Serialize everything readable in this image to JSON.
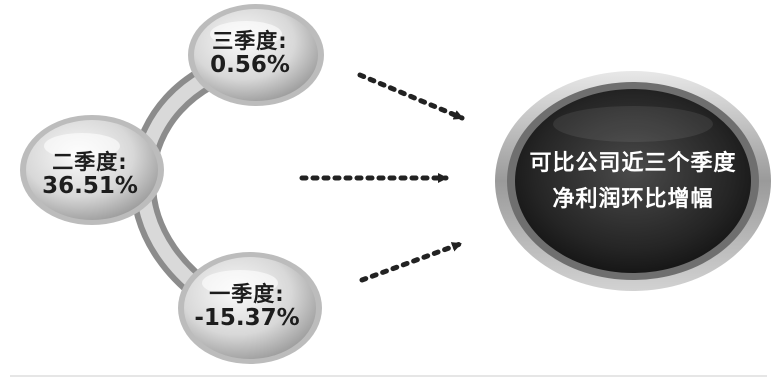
{
  "nodes": [
    {
      "id": "q3",
      "quarter": "三季度:",
      "value": "0.56%"
    },
    {
      "id": "q2",
      "quarter": "二季度:",
      "value": "36.51%"
    },
    {
      "id": "q1",
      "quarter": "一季度:",
      "value": "-15.37%"
    }
  ],
  "target": {
    "line1": "可比公司近三个季度",
    "line2": "净利润环比增幅"
  },
  "colors": {
    "bubble_light": "#f4f4f4",
    "bubble_dark": "#8a8a8a",
    "ring": "#9a9a9a",
    "target_core": "#2a2a2a",
    "target_ring": "#bdbdbd",
    "arrow": "#222222"
  }
}
